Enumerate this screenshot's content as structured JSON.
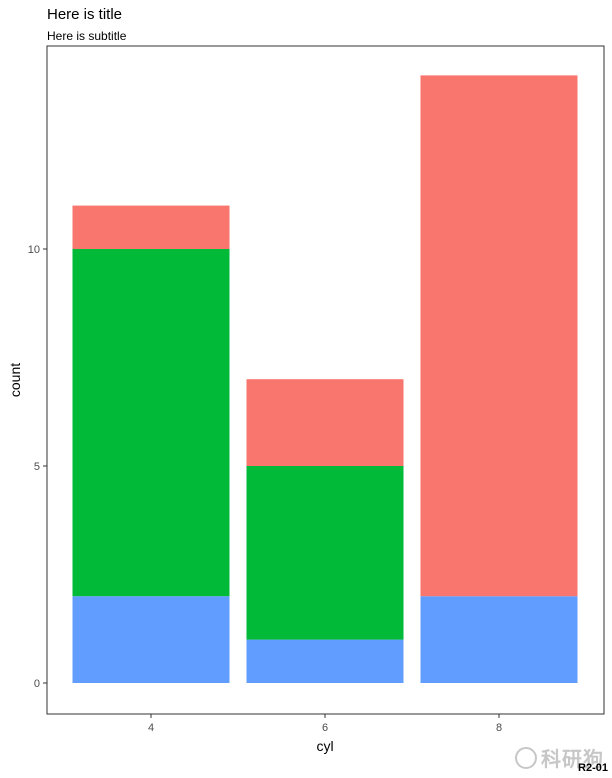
{
  "chart_data": {
    "type": "bar",
    "stacked": true,
    "title": "Here is title",
    "subtitle": "Here is subtitle",
    "xlabel": "cyl",
    "ylabel": "count",
    "categories": [
      "4",
      "6",
      "8"
    ],
    "ylim": [
      0,
      14
    ],
    "yticks": [
      0,
      5,
      10
    ],
    "grid": false,
    "legend": "none",
    "series": [
      {
        "color": "#619CFF",
        "values": [
          2,
          1,
          2
        ]
      },
      {
        "color": "#00BA38",
        "values": [
          8,
          4,
          0
        ]
      },
      {
        "color": "#F8766D",
        "values": [
          1,
          2,
          12
        ]
      }
    ]
  },
  "watermark": {
    "text": "科研狗",
    "id": "R2-01"
  }
}
